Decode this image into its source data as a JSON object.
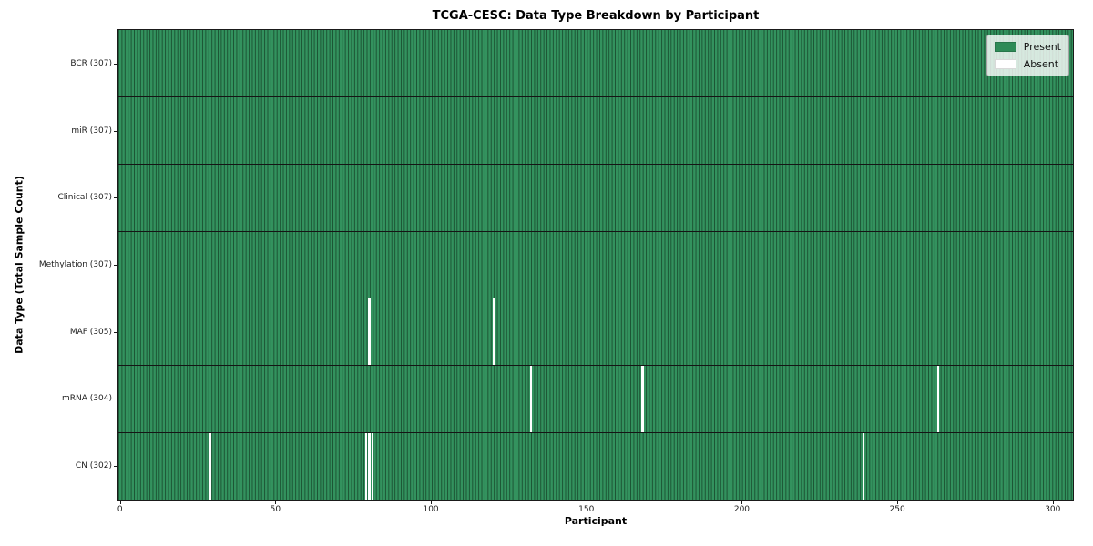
{
  "title": "TCGA-CESC: Data Type Breakdown by Participant",
  "axes": {
    "x_label": "Participant",
    "y_label": "Data Type (Total Sample Count)",
    "x_ticks": [
      0,
      50,
      100,
      150,
      200,
      250,
      300
    ]
  },
  "legend": {
    "items": [
      {
        "label": "Present",
        "color": "#2e8b57"
      },
      {
        "label": "Absent",
        "color": "#ffffff"
      }
    ]
  },
  "colors": {
    "present_fill": "#33925e",
    "cell_edge": "#1c5434",
    "absent_fill": "#ffffff",
    "row_separator": "#151515",
    "spine": "#1a1a1a",
    "legend_present": "#2e8b57",
    "legend_absent": "#ffffff"
  },
  "chart_data": {
    "type": "heatmap",
    "title": "TCGA-CESC: Data Type Breakdown by Participant",
    "xlabel": "Participant",
    "ylabel": "Data Type (Total Sample Count)",
    "n_participants": 307,
    "xlim": [
      -0.5,
      306.5
    ],
    "x_ticks": [
      0,
      50,
      100,
      150,
      200,
      250,
      300
    ],
    "legend_entries": [
      "Present",
      "Absent"
    ],
    "legend_position": "upper right",
    "grid": false,
    "rows": [
      {
        "label": "BCR (307)",
        "data_type": "BCR",
        "present_count": 307,
        "absent_participants": []
      },
      {
        "label": "miR (307)",
        "data_type": "miR",
        "present_count": 307,
        "absent_participants": []
      },
      {
        "label": "Clinical (307)",
        "data_type": "Clinical",
        "present_count": 307,
        "absent_participants": []
      },
      {
        "label": "Methylation (307)",
        "data_type": "Methylation",
        "present_count": 307,
        "absent_participants": []
      },
      {
        "label": "MAF (305)",
        "data_type": "MAF",
        "present_count": 305,
        "absent_participants": [
          80,
          120
        ]
      },
      {
        "label": "mRNA (304)",
        "data_type": "mRNA",
        "present_count": 304,
        "absent_participants": [
          132,
          168,
          263
        ]
      },
      {
        "label": "CN (302)",
        "data_type": "CN",
        "present_count": 302,
        "absent_participants": [
          29,
          79,
          80,
          81,
          239
        ]
      }
    ]
  }
}
